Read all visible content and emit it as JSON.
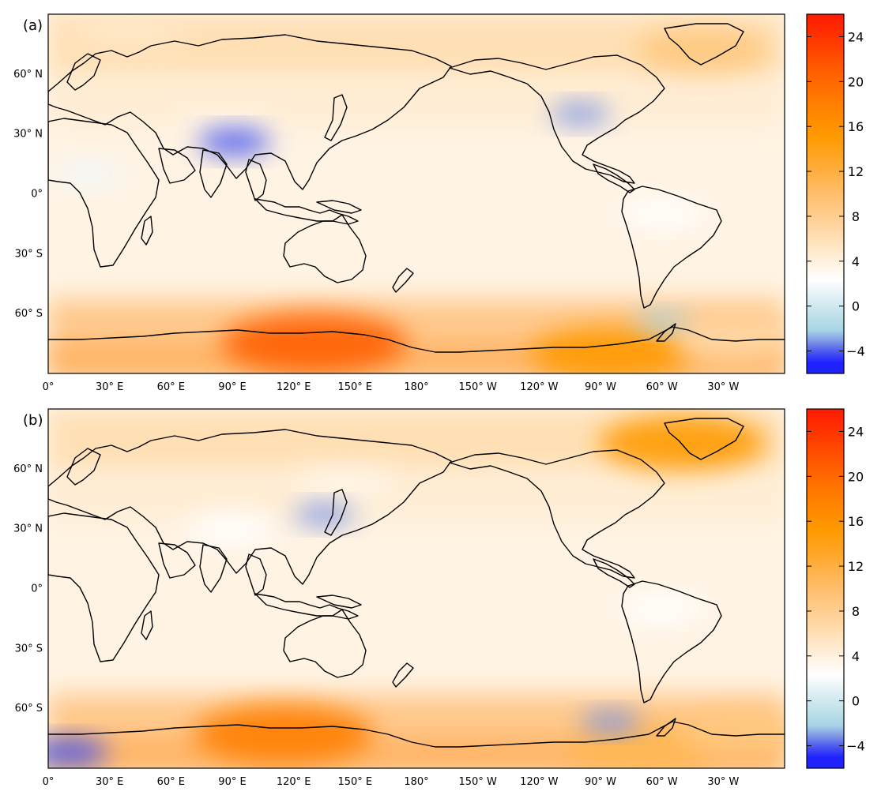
{
  "chart_data": {
    "type": "heatmap",
    "projection": "equirectangular, centered on 180°",
    "colormap": {
      "colors": [
        "#1f22ff",
        "#4a58ee",
        "#7f98e6",
        "#a7d4e6",
        "#bfe1ea",
        "#d8ecf2",
        "#f2f8fb",
        "#ffffff",
        "#fff4e6",
        "#ffe8c8",
        "#ffd9a6",
        "#ffc87e",
        "#ffb852",
        "#ffa72a",
        "#ff9a00",
        "#ff7e00",
        "#ff5e00",
        "#ff3c00",
        "#ff1a00"
      ],
      "ticks": [
        "24",
        "20",
        "16",
        "12",
        "8",
        "4",
        "0",
        "−4"
      ],
      "range": [
        -6,
        26
      ]
    },
    "x_ticks": [
      "0°",
      "30° E",
      "60° E",
      "90° E",
      "120° E",
      "150° E",
      "180°",
      "150° W",
      "120° W",
      "90° W",
      "60° W",
      "30° W"
    ],
    "y_ticks": [
      "60° N",
      "30° N",
      "0°",
      "30° S",
      "60° S"
    ],
    "panels": [
      {
        "label": "(a)",
        "hotspots": [
          {
            "lon": 130,
            "lat": -75,
            "value": 22
          },
          {
            "lon": -85,
            "lat": -80,
            "value": 18
          },
          {
            "lon": -40,
            "lat": 72,
            "value": 14
          },
          {
            "lon": -25,
            "lat": -73,
            "value": 12
          },
          {
            "lon": 40,
            "lat": 82,
            "value": 10
          },
          {
            "lon": 85,
            "lat": 33,
            "value": 8
          },
          {
            "lon": -60,
            "lat": -10,
            "value": 7
          },
          {
            "lon": 20,
            "lat": 10,
            "value": 4
          },
          {
            "lon": 91,
            "lat": 26,
            "value": -4
          },
          {
            "lon": -100,
            "lat": 40,
            "value": -2
          },
          {
            "lon": -60,
            "lat": -64,
            "value": -1
          }
        ]
      },
      {
        "label": "(b)",
        "hotspots": [
          {
            "lon": 115,
            "lat": -73,
            "value": 21
          },
          {
            "lon": -50,
            "lat": 73,
            "value": 19
          },
          {
            "lon": -70,
            "lat": -80,
            "value": 16
          },
          {
            "lon": -20,
            "lat": -72,
            "value": 14
          },
          {
            "lon": 145,
            "lat": 52,
            "value": 9
          },
          {
            "lon": 90,
            "lat": 30,
            "value": 7
          },
          {
            "lon": -60,
            "lat": -10,
            "value": 7
          },
          {
            "lon": 10,
            "lat": -82,
            "value": -5
          },
          {
            "lon": 135,
            "lat": 37,
            "value": -2
          },
          {
            "lon": -85,
            "lat": -67,
            "value": -2
          }
        ]
      }
    ]
  }
}
